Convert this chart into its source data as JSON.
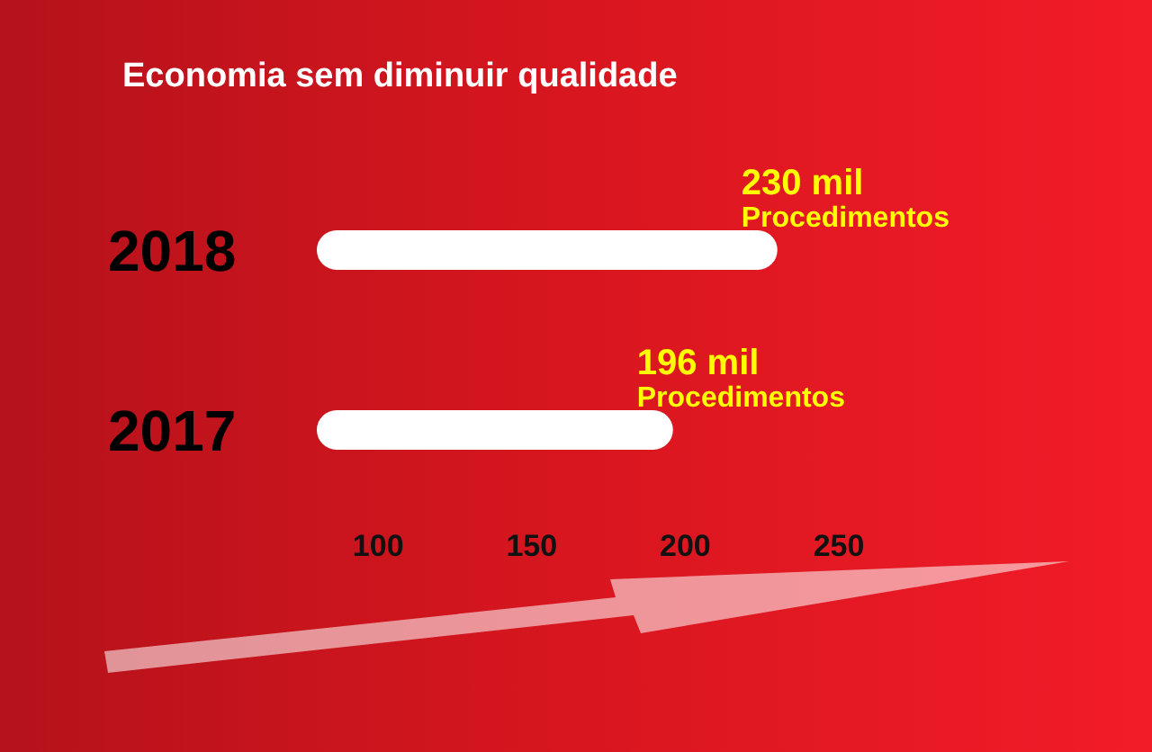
{
  "chart_data": {
    "type": "bar",
    "orientation": "horizontal",
    "title": "Economia sem diminuir qualidade",
    "categories": [
      "2018",
      "2017"
    ],
    "values": [
      230,
      196
    ],
    "value_labels": [
      "230 mil\nProcedimentos",
      "196 mil\nProcedimentos"
    ],
    "color": "#ffffff",
    "xlim": [
      80,
      250
    ],
    "xticks": [
      100,
      150,
      200,
      250
    ],
    "grid": false,
    "legend": false
  }
}
